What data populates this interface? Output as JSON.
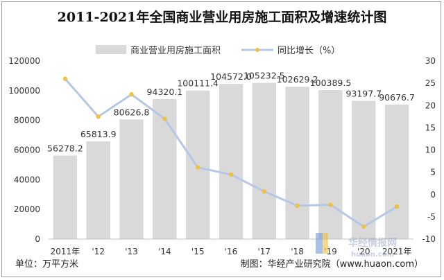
{
  "chart_data": {
    "type": "bar",
    "title": "2011-2021年全国商业营业用房施工面积及增速统计图",
    "categories": [
      "2011年",
      "'12",
      "'13",
      "'14",
      "'15",
      "'16",
      "'17",
      "'18",
      "'19",
      "'20",
      "2021年"
    ],
    "series": [
      {
        "name": "商业营业用房施工面积",
        "type": "bar",
        "axis": "left",
        "color": "#d9d9d9",
        "values": [
          56278.2,
          65813.9,
          80626.8,
          94320.1,
          100111.4,
          104572.0,
          105232.5,
          102629.2,
          100389.5,
          93197.7,
          90676.7
        ],
        "labels": [
          "56278.2",
          "65813.9",
          "80626.8",
          "94320.1",
          "100111.4",
          "104572.0",
          "105232.5",
          "102629.2",
          "100389.5",
          "93197.7",
          "90676.7"
        ]
      },
      {
        "name": "同比增长（%）",
        "type": "line",
        "axis": "right",
        "color": "#b4c7e7",
        "marker_color": "#f0c040",
        "values": [
          26.0,
          17.5,
          22.5,
          17.0,
          6.1,
          4.5,
          0.7,
          -2.5,
          -2.3,
          -7.2,
          -2.7
        ]
      }
    ],
    "ylim_left": [
      0,
      120000
    ],
    "yticks_left": [
      0,
      20000,
      40000,
      60000,
      80000,
      100000,
      120000
    ],
    "ylim_right": [
      -10,
      30
    ],
    "yticks_right": [
      -10,
      -5,
      0,
      5,
      10,
      15,
      20,
      25,
      30
    ],
    "legend": "top",
    "grid": false
  },
  "footer": {
    "unit": "单位：万平方米",
    "source": "制图：华经产业研究院（www.huaon.com）"
  },
  "watermark": {
    "text": "华经情报网",
    "subtext": "huaon.com"
  }
}
